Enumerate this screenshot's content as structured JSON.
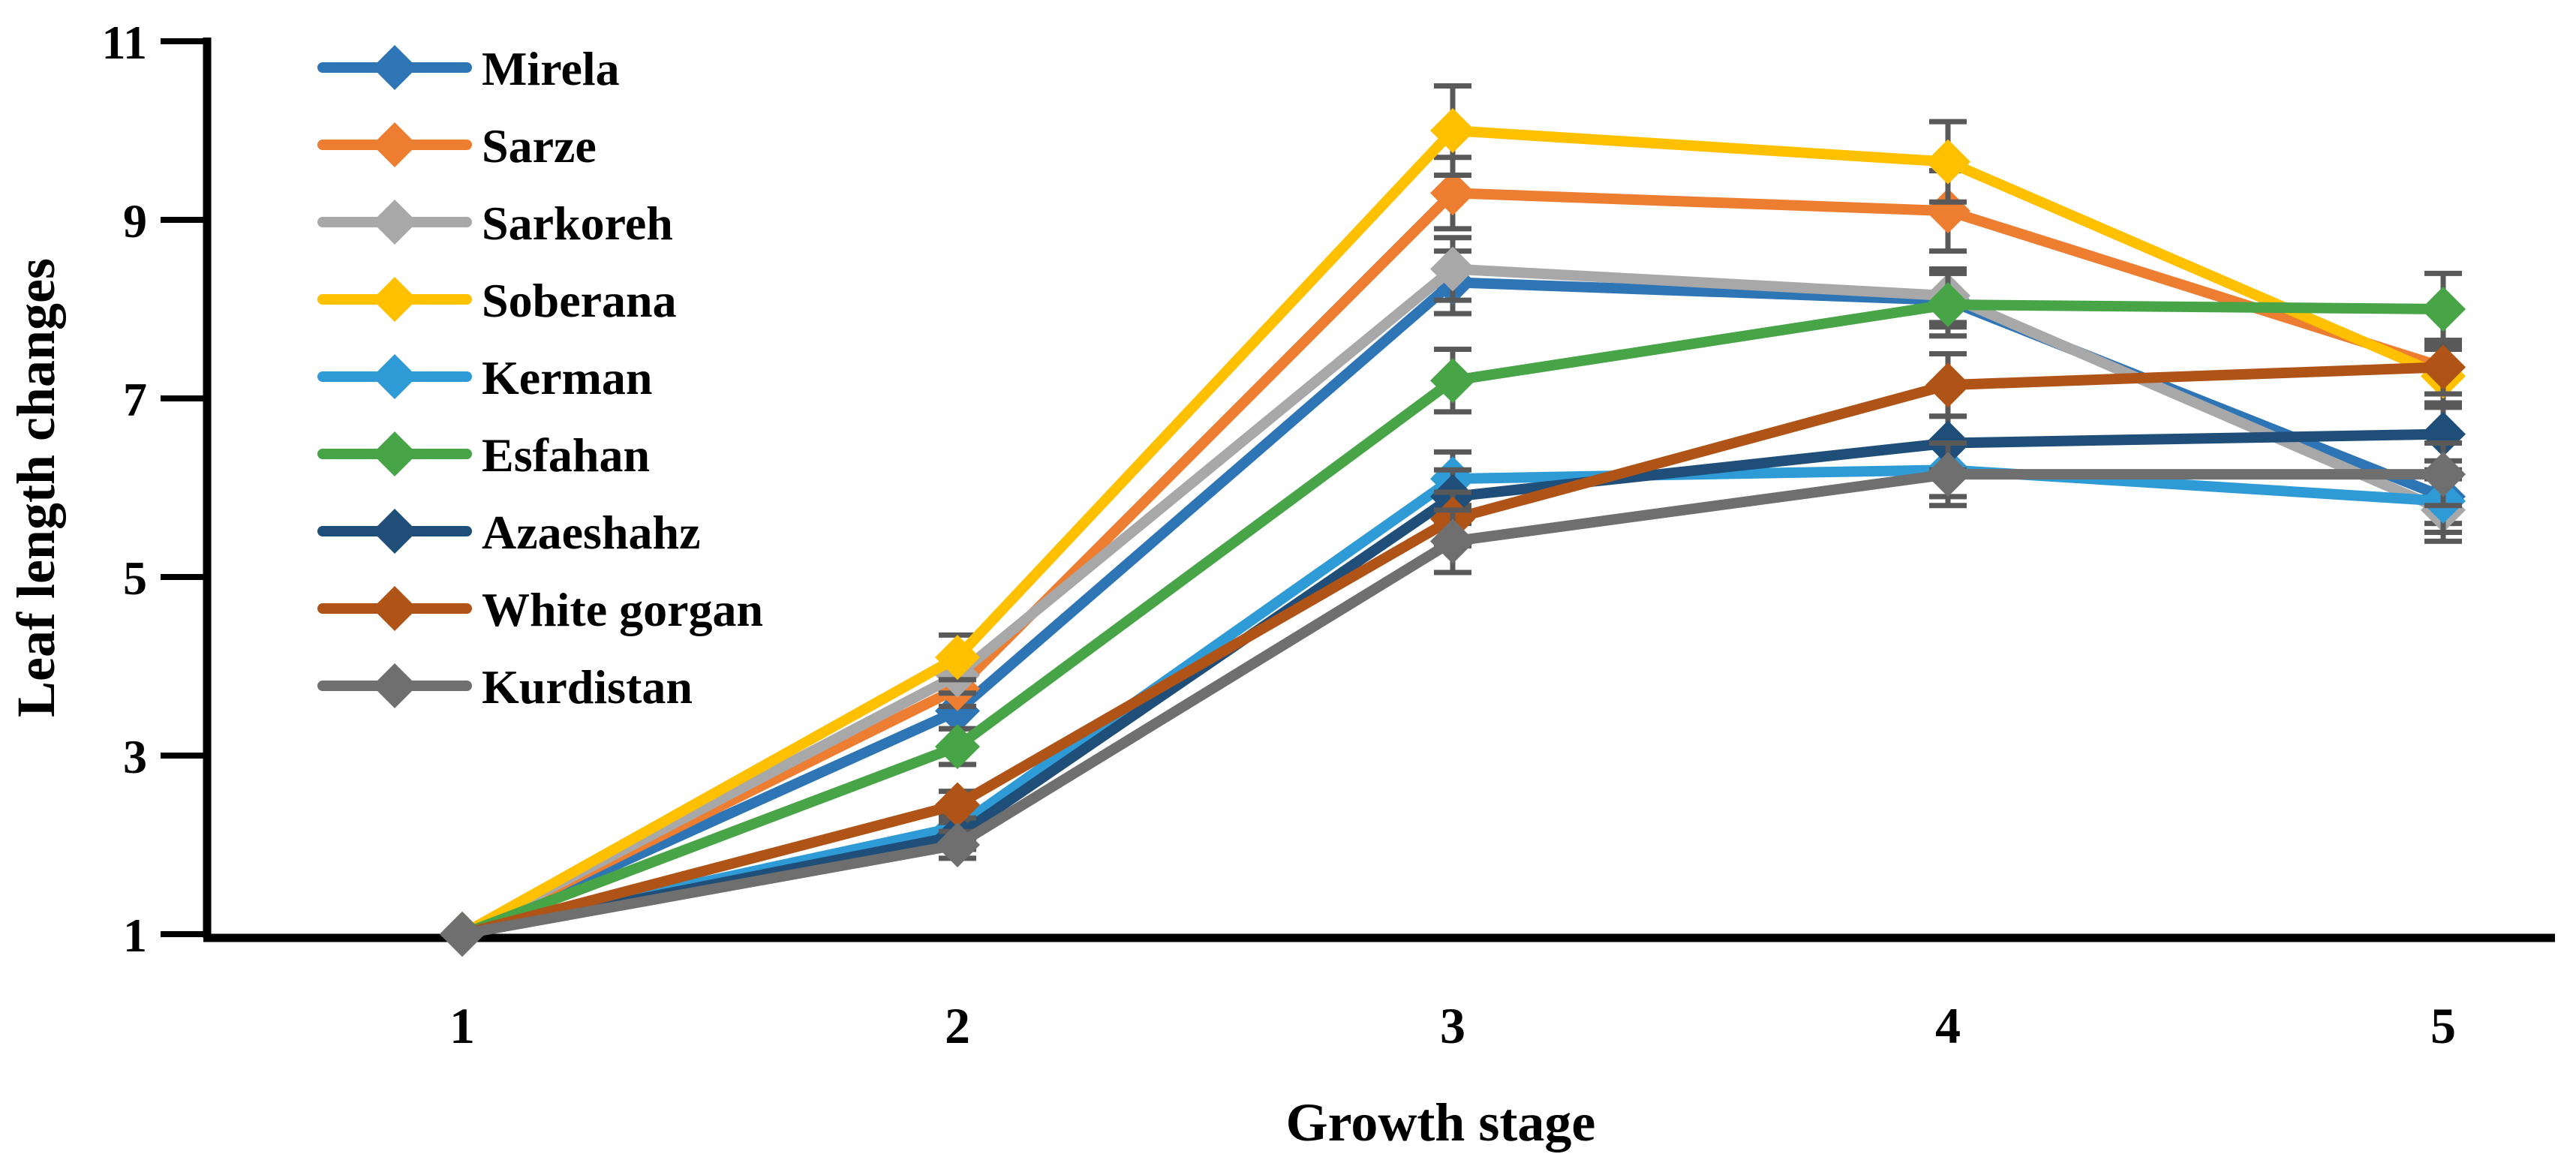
{
  "chart_data": {
    "type": "line",
    "title": "",
    "xlabel": "Growth stage",
    "ylabel": "Leaf length changes",
    "categories": [
      1,
      2,
      3,
      4,
      5
    ],
    "x_tick_labels": [
      "1",
      "2",
      "3",
      "4",
      "5"
    ],
    "y_tick_labels": [
      "11",
      "9",
      "7",
      "5",
      "3",
      "1"
    ],
    "ylim": [
      1,
      11
    ],
    "y_tick_step": 2,
    "grid": false,
    "legend_position": "upper-left-inside",
    "marker": "diamond",
    "axis_color": "#000000",
    "error_bar_color": "#595959",
    "series": [
      {
        "name": "Mirela",
        "color": "#2E75B6",
        "values": [
          1,
          3.5,
          8.3,
          8.1,
          5.9
        ],
        "errors": [
          0,
          0.2,
          0.35,
          0.3,
          0.3
        ]
      },
      {
        "name": "Sarze",
        "color": "#ED7D31",
        "values": [
          1,
          3.75,
          9.3,
          9.1,
          7.35
        ],
        "errors": [
          0,
          0.2,
          0.4,
          0.45,
          0.3
        ]
      },
      {
        "name": "Sarkoreh",
        "color": "#A8A8A8",
        "values": [
          1,
          3.9,
          8.45,
          8.15,
          5.75
        ],
        "errors": [
          0,
          0.2,
          0.35,
          0.3,
          0.35
        ]
      },
      {
        "name": "Soberana",
        "color": "#FFC000",
        "values": [
          1,
          4.1,
          10.0,
          9.65,
          7.25
        ],
        "errors": [
          0,
          0.25,
          0.5,
          0.45,
          0.3
        ]
      },
      {
        "name": "Kerman",
        "color": "#2E9BD6",
        "values": [
          1,
          2.2,
          6.1,
          6.2,
          5.85
        ],
        "errors": [
          0,
          0.15,
          0.3,
          0.3,
          0.35
        ]
      },
      {
        "name": "Esfahan",
        "color": "#47A447",
        "values": [
          1,
          3.1,
          7.2,
          8.05,
          8.0
        ],
        "errors": [
          0,
          0.2,
          0.35,
          0.35,
          0.4
        ]
      },
      {
        "name": "Azaeshahz",
        "color": "#1F4E79",
        "values": [
          1,
          2.1,
          5.9,
          6.5,
          6.6
        ],
        "errors": [
          0,
          0.15,
          0.3,
          0.3,
          0.3
        ]
      },
      {
        "name": "White gorgan",
        "color": "#B05317",
        "values": [
          1,
          2.45,
          5.65,
          7.15,
          7.35
        ],
        "errors": [
          0,
          0.15,
          0.3,
          0.35,
          0.3
        ]
      },
      {
        "name": "Kurdistan",
        "color": "#6F6F6F",
        "values": [
          1,
          2.0,
          5.4,
          6.15,
          6.15
        ],
        "errors": [
          0,
          0.15,
          0.35,
          0.35,
          0.35
        ]
      }
    ]
  }
}
